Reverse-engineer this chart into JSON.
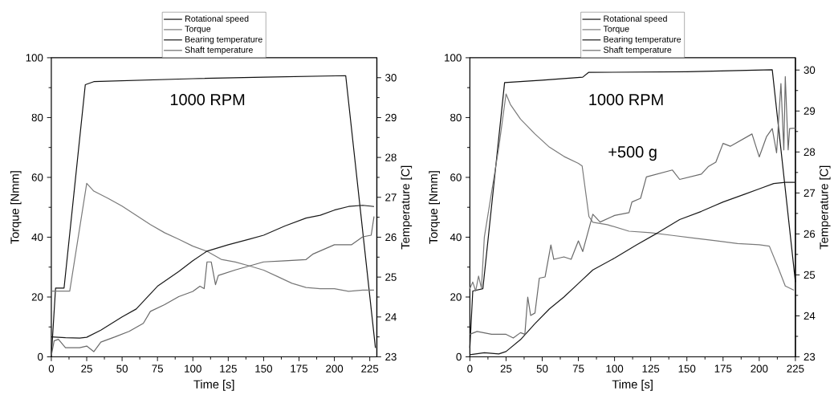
{
  "chart_data": [
    {
      "type": "line",
      "xlabel": "Time [s]",
      "ylabel": "Torque [Nmm]",
      "y2label": "Temperature [C]",
      "annotations": [
        "1000 RPM"
      ],
      "legend": "top",
      "xlim": [
        0,
        230
      ],
      "xticks": [
        0,
        25,
        50,
        75,
        100,
        125,
        150,
        175,
        200,
        225
      ],
      "ylim": [
        0,
        100
      ],
      "yticks": [
        0,
        20,
        40,
        60,
        80,
        100
      ],
      "y2lim": [
        23,
        30.5
      ],
      "y2ticks": [
        23,
        24,
        25,
        26,
        27,
        28,
        29,
        30
      ],
      "series": [
        {
          "name": "Rotational speed",
          "color": "#111111",
          "x": [
            0,
            3,
            9,
            24,
            27,
            30,
            100,
            150,
            208,
            229
          ],
          "values": [
            0,
            23,
            23,
            91,
            91.5,
            92,
            93,
            93.5,
            94,
            3
          ]
        },
        {
          "name": "Torque",
          "color": "#7a7a7a",
          "x": [
            0,
            13,
            24,
            25,
            30,
            40,
            50,
            60,
            70,
            80,
            90,
            100,
            110,
            120,
            130,
            140,
            150,
            160,
            170,
            180,
            190,
            200,
            210,
            220,
            228
          ],
          "values": [
            22,
            22,
            55,
            58,
            55.4,
            53,
            50.4,
            47.3,
            44.2,
            41.5,
            39.3,
            37,
            35.3,
            32.6,
            31.7,
            30.4,
            29,
            26.8,
            24.6,
            23.2,
            22.8,
            22.8,
            21.9,
            22.3,
            22.3
          ]
        },
        {
          "name": "Bearing temperature",
          "color": "#1a1a1a",
          "axis": "y2",
          "x": [
            0,
            10,
            20,
            25,
            35,
            50,
            60,
            75,
            90,
            100,
            110,
            125,
            140,
            150,
            165,
            180,
            190,
            200,
            210,
            220,
            228
          ],
          "values": [
            23.5,
            23.48,
            23.47,
            23.49,
            23.67,
            24.0,
            24.2,
            24.77,
            25.14,
            25.41,
            25.65,
            25.81,
            25.95,
            26.05,
            26.28,
            26.48,
            26.55,
            26.68,
            26.77,
            26.8,
            26.77
          ]
        },
        {
          "name": "Shaft temperature",
          "color": "#6a6a6a",
          "axis": "y2",
          "x": [
            0,
            2,
            5,
            10,
            20,
            25,
            30,
            35,
            45,
            55,
            65,
            70,
            80,
            90,
            100,
            105,
            108,
            110,
            113,
            116,
            118,
            130,
            140,
            150,
            165,
            180,
            185,
            200,
            212,
            220,
            226,
            228
          ],
          "values": [
            23.03,
            23.4,
            23.44,
            23.23,
            23.23,
            23.27,
            23.13,
            23.37,
            23.5,
            23.64,
            23.84,
            24.14,
            24.31,
            24.51,
            24.64,
            24.77,
            24.71,
            25.38,
            25.38,
            24.81,
            25.04,
            25.18,
            25.28,
            25.38,
            25.41,
            25.44,
            25.58,
            25.81,
            25.81,
            26.01,
            26.05,
            26.52
          ]
        }
      ]
    },
    {
      "type": "line",
      "xlabel": "Time [s]",
      "ylabel": "Torque [Nmm]",
      "y2label": "Temperature [C]",
      "annotations": [
        "1000 RPM",
        "+500 g"
      ],
      "legend": "top",
      "xlim": [
        0,
        225
      ],
      "xticks": [
        0,
        25,
        50,
        75,
        100,
        125,
        150,
        175,
        200,
        225
      ],
      "ylim": [
        0,
        100
      ],
      "yticks": [
        0,
        20,
        40,
        60,
        80,
        100
      ],
      "y2lim": [
        23,
        30.3
      ],
      "y2ticks": [
        23,
        24,
        25,
        26,
        27,
        28,
        29,
        30
      ],
      "series": [
        {
          "name": "Rotational speed",
          "color": "#111111",
          "x": [
            0,
            2,
            9,
            24,
            50,
            78,
            82,
            150,
            209,
            225
          ],
          "values": [
            3,
            22,
            22.8,
            91.7,
            92.5,
            93.5,
            95.1,
            95.3,
            96,
            25
          ]
        },
        {
          "name": "Torque",
          "color": "#7a7a7a",
          "x": [
            0,
            2,
            4,
            6,
            8,
            10,
            15,
            20,
            25,
            28,
            35,
            45,
            55,
            65,
            75,
            77.6,
            82.3,
            85,
            95,
            110,
            125,
            140,
            155,
            170,
            185,
            200,
            207,
            213,
            218,
            224
          ],
          "values": [
            22.8,
            25,
            22,
            27,
            23,
            40,
            55,
            70,
            87.9,
            84.4,
            79.5,
            74.5,
            70.1,
            67,
            64.7,
            63.8,
            46.9,
            45,
            44.2,
            42,
            41.5,
            40.6,
            39.7,
            38.8,
            37.9,
            37.5,
            37,
            29.9,
            23.7,
            22.3
          ]
        },
        {
          "name": "Bearing temperature",
          "color": "#1a1a1a",
          "axis": "y2",
          "x": [
            0,
            10,
            20,
            25,
            35,
            45,
            55,
            65,
            75,
            85,
            100,
            115,
            130,
            145,
            160,
            175,
            190,
            200,
            210,
            218,
            225
          ],
          "values": [
            23.05,
            23.1,
            23.07,
            23.13,
            23.42,
            23.81,
            24.17,
            24.46,
            24.79,
            25.12,
            25.41,
            25.73,
            26.03,
            26.35,
            26.55,
            26.78,
            26.97,
            27.1,
            27.23,
            27.26,
            27.26
          ]
        },
        {
          "name": "Shaft temperature",
          "color": "#6a6a6a",
          "axis": "y2",
          "x": [
            0,
            5,
            15,
            25,
            30,
            35,
            38,
            40,
            42,
            45,
            48,
            52,
            56,
            58,
            65,
            70,
            75,
            78,
            85,
            90,
            100,
            110,
            112,
            118,
            122,
            140,
            145,
            160,
            165,
            170,
            175,
            180,
            195,
            200,
            205,
            209,
            212,
            215,
            217,
            218,
            220,
            221,
            225
          ],
          "values": [
            23.55,
            23.62,
            23.55,
            23.55,
            23.46,
            23.59,
            23.55,
            24.46,
            24.01,
            24.07,
            24.92,
            24.95,
            25.73,
            25.38,
            25.44,
            25.38,
            25.83,
            25.57,
            26.48,
            26.29,
            26.45,
            26.52,
            26.78,
            26.87,
            27.39,
            27.56,
            27.33,
            27.46,
            27.65,
            27.75,
            28.21,
            28.14,
            28.44,
            27.88,
            28.37,
            28.57,
            27.98,
            29.67,
            28.05,
            29.84,
            28.05,
            28.57,
            28.58
          ]
        }
      ]
    }
  ]
}
